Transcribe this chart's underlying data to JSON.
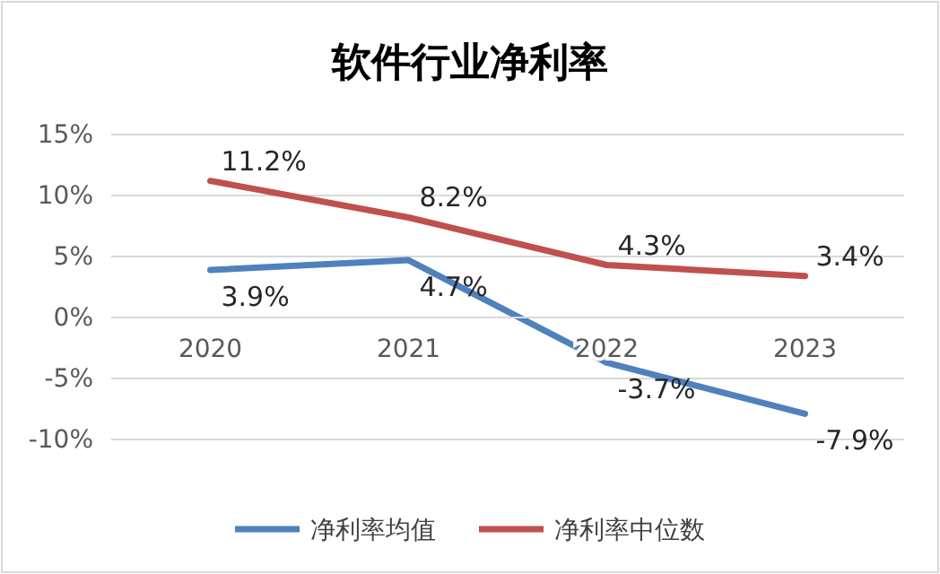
{
  "chart_data": {
    "type": "line",
    "title": "软件行业净利率",
    "categories": [
      "2020",
      "2021",
      "2022",
      "2023"
    ],
    "series": [
      {
        "name": "净利率均值",
        "color": "#4f81bd",
        "values": [
          3.9,
          4.7,
          -3.7,
          -7.9
        ],
        "value_labels": [
          "3.9%",
          "4.7%",
          "-3.7%",
          "-7.9%"
        ]
      },
      {
        "name": "净利率中位数",
        "color": "#c0504d",
        "values": [
          11.2,
          8.2,
          4.3,
          3.4
        ],
        "value_labels": [
          "11.2%",
          "8.2%",
          "4.3%",
          "3.4%"
        ]
      }
    ],
    "ylim": [
      -10,
      15
    ],
    "yticks": [
      {
        "value": -10,
        "label": "-10%"
      },
      {
        "value": -5,
        "label": "-5%"
      },
      {
        "value": 0,
        "label": "0%"
      },
      {
        "value": 5,
        "label": "5%"
      },
      {
        "value": 10,
        "label": "10%"
      },
      {
        "value": 15,
        "label": "15%"
      }
    ],
    "grid": "y",
    "legend": "bottom",
    "marker": "none",
    "line_style": "solid"
  }
}
